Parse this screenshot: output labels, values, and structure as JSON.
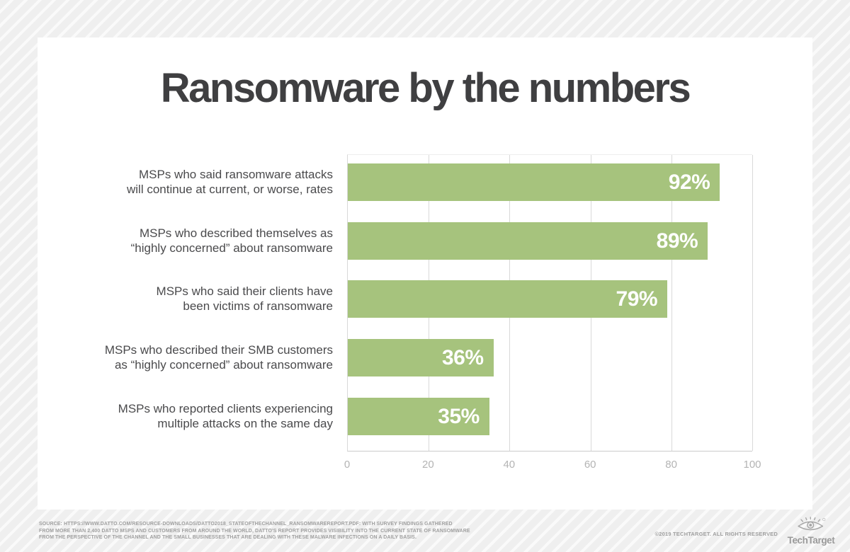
{
  "chart_data": {
    "type": "bar",
    "orientation": "horizontal",
    "title": "Ransomware by the numbers",
    "categories": [
      {
        "lines": [
          "MSPs who said ransomware attacks",
          "will continue at current, or worse, rates"
        ]
      },
      {
        "lines": [
          "MSPs who described themselves as",
          "“highly concerned” about ransomware"
        ]
      },
      {
        "lines": [
          "MSPs who said their clients have",
          "been victims of ransomware"
        ]
      },
      {
        "lines": [
          "MSPs who described their SMB customers",
          "as “highly concerned” about ransomware"
        ]
      },
      {
        "lines": [
          "MSPs who reported clients experiencing",
          "multiple attacks on the same day"
        ]
      }
    ],
    "values": [
      92,
      89,
      79,
      36,
      35
    ],
    "value_labels": [
      "92%",
      "89%",
      "79%",
      "36%",
      "35%"
    ],
    "xlim": [
      0,
      100
    ],
    "x_ticks": [
      0,
      20,
      40,
      60,
      80,
      100
    ],
    "grid": true,
    "legend": false
  },
  "colors": {
    "bar": "#a6c37d",
    "value_label": "#ffffff",
    "title_text": "#3f3f41",
    "category_text": "#4a4a4c",
    "tick_text": "#b4b4b4",
    "gridline": "#d9d9d9",
    "card_bg": "#ffffff"
  },
  "footer": {
    "source_lines": [
      "SOURCE: HTTPS://WWW.DATTO.COM/RESOURCE-DOWNLOADS/DATTO2018_STATEOFTHECHANNEL_RANSOMWAREREPORT.PDF: WITH SURVEY FINDINGS GATHERED",
      "FROM MORE THAN 2,400 DATTO MSPS AND CUSTOMERS FROM AROUND THE WORLD, DATTO'S REPORT PROVIDES VISIBILITY INTO THE CURRENT STATE OF RANSOMWARE",
      "FROM THE PERSPECTIVE OF THE CHANNEL AND THE SMALL BUSINESSES THAT ARE DEALING WITH THESE MALWARE INFECTIONS ON A DAILY BASIS."
    ],
    "copyright": "©2019 TECHTARGET. ALL RIGHTS RESERVED",
    "logo_text": "TechTarget"
  }
}
